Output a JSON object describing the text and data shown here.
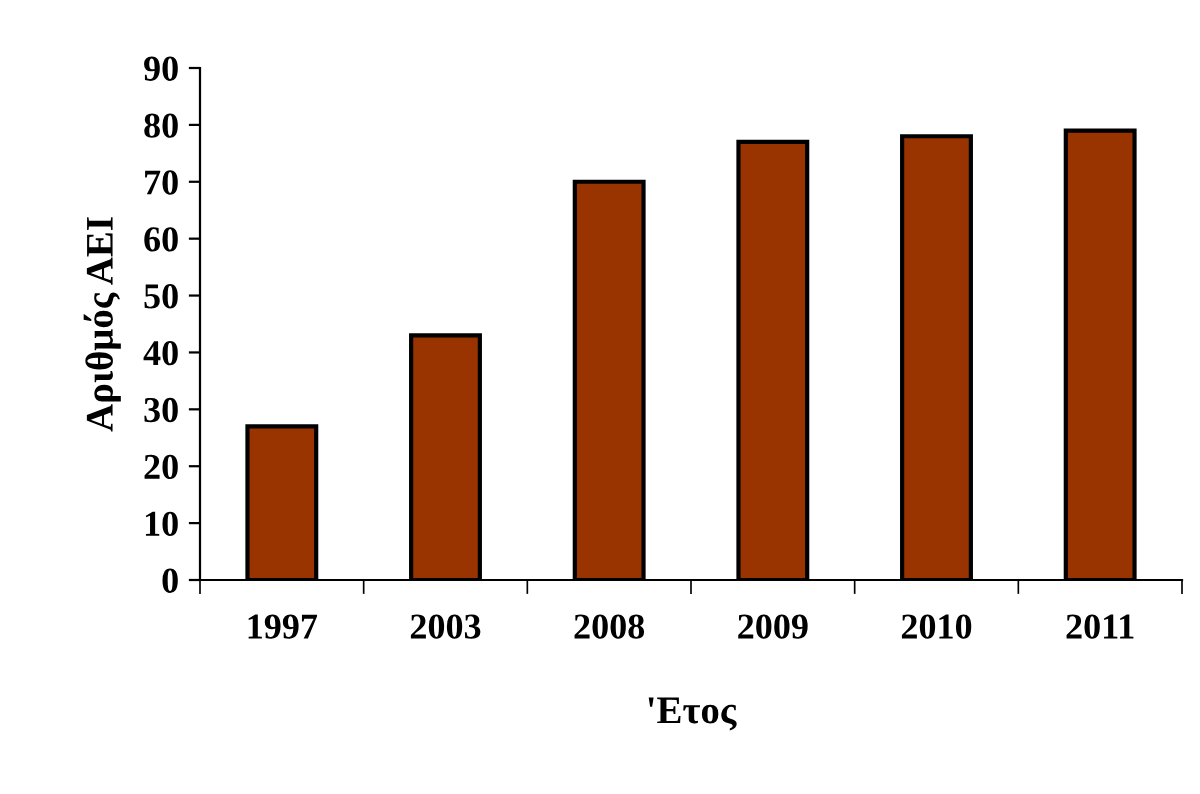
{
  "chart_data": {
    "type": "bar",
    "xlabel": "'Ετος",
    "ylabel": "Αριθμός ΑΕΙ",
    "categories": [
      "1997",
      "2003",
      "2008",
      "2009",
      "2010",
      "2011"
    ],
    "values": [
      27,
      43,
      70,
      77,
      78,
      79
    ],
    "color": "#993300",
    "ylim": [
      0,
      90
    ],
    "yticks": [
      0,
      10,
      20,
      30,
      40,
      50,
      60,
      70,
      80,
      90
    ],
    "grid": false,
    "legend": false
  }
}
